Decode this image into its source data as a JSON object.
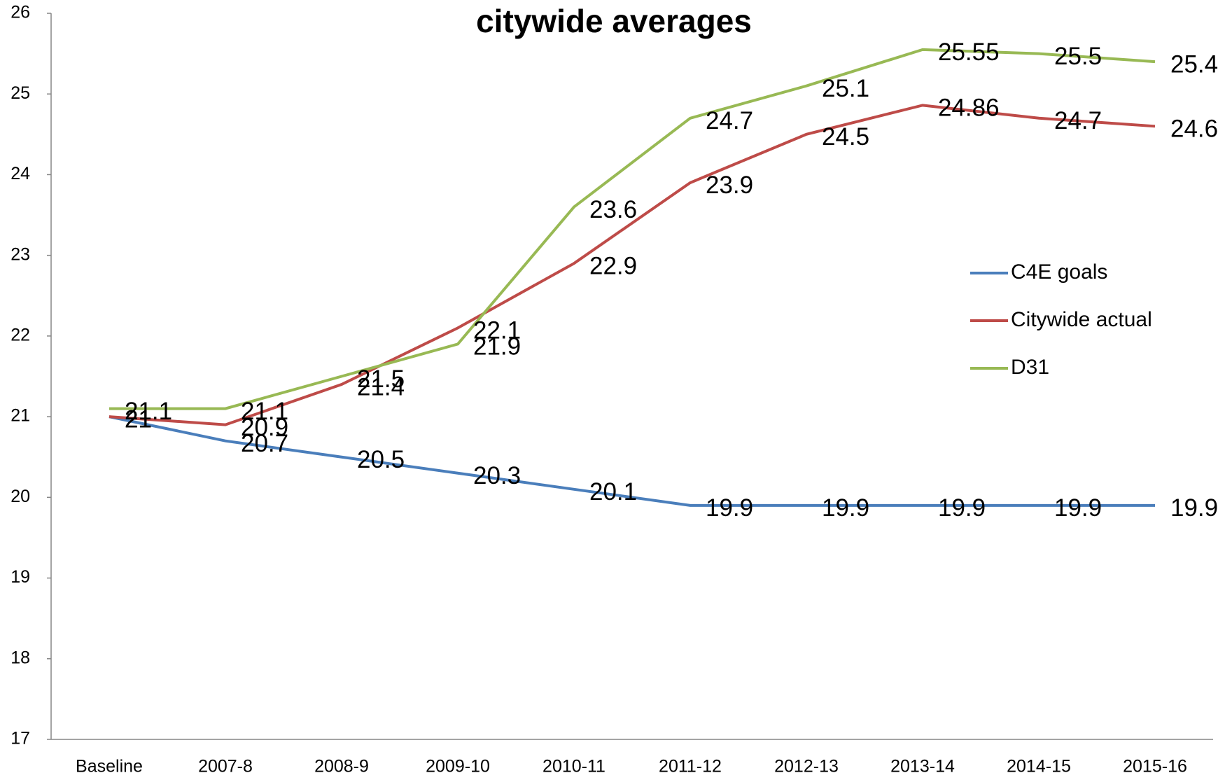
{
  "chart_data": {
    "type": "line",
    "title": "citywide averages",
    "categories": [
      "Baseline",
      "2007-8",
      "2008-9",
      "2009-10",
      "2010-11",
      "2011-12",
      "2012-13",
      "2013-14",
      "2014-15",
      "2015-16"
    ],
    "series": [
      {
        "name": "C4E goals",
        "color": "#4a7ebb",
        "values": [
          21,
          20.7,
          20.5,
          20.3,
          20.1,
          19.9,
          19.9,
          19.9,
          19.9,
          19.9
        ]
      },
      {
        "name": "Citywide actual",
        "color": "#be4b48",
        "values": [
          21,
          20.9,
          21.4,
          22.1,
          22.9,
          23.9,
          24.5,
          24.86,
          24.7,
          24.6
        ]
      },
      {
        "name": "D31",
        "color": "#98b954",
        "values": [
          21.1,
          21.1,
          21.5,
          21.9,
          23.6,
          24.7,
          25.1,
          25.55,
          25.5,
          25.4
        ]
      }
    ],
    "ylim": [
      17,
      26
    ],
    "yticks": [
      17,
      18,
      19,
      20,
      21,
      22,
      23,
      24,
      25,
      26
    ],
    "grid": false,
    "legend": "right",
    "data_labels": true
  }
}
